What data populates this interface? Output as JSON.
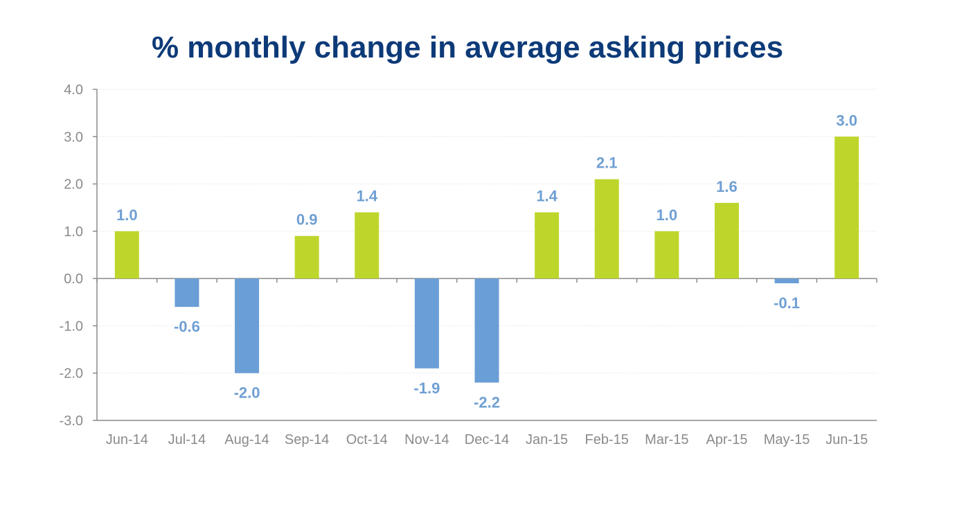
{
  "chart_data": {
    "type": "bar",
    "title": "% monthly change in average asking prices",
    "xlabel": "",
    "ylabel": "",
    "categories": [
      "Jun-14",
      "Jul-14",
      "Aug-14",
      "Sep-14",
      "Oct-14",
      "Nov-14",
      "Dec-14",
      "Jan-15",
      "Feb-15",
      "Mar-15",
      "Apr-15",
      "May-15",
      "Jun-15"
    ],
    "values": [
      1.0,
      -0.6,
      -2.0,
      0.9,
      1.4,
      -1.9,
      -2.2,
      1.4,
      2.1,
      1.0,
      1.6,
      -0.1,
      3.0
    ],
    "value_labels": [
      "1.0",
      "-0.6",
      "-2.0",
      "0.9",
      "1.4",
      "-1.9",
      "-2.2",
      "1.4",
      "2.1",
      "1.0",
      "1.6",
      "-0.1",
      "3.0"
    ],
    "ylim": [
      -3.0,
      4.0
    ],
    "yticks": [
      "4.0",
      "3.0",
      "2.0",
      "1.0",
      "0.0",
      "-1.0",
      "-2.0",
      "-3.0"
    ],
    "grid": true,
    "legend": "none",
    "colors": {
      "positive": "#bed62b",
      "negative": "#6a9ed6",
      "label": "#6f9fd3",
      "axis": "#8a8a8a",
      "grid": "#e6e6e6",
      "title": "#0d3a78"
    }
  }
}
